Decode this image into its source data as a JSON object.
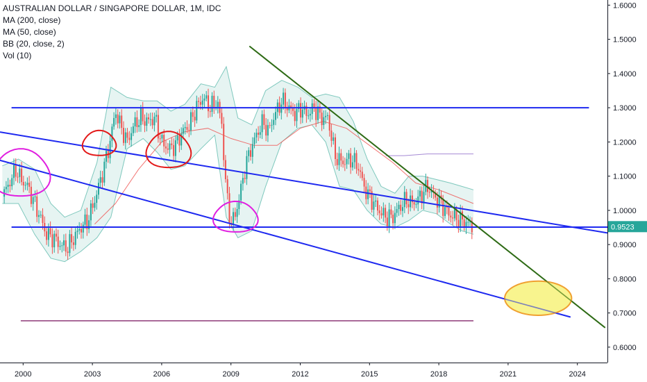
{
  "legend": {
    "title": "AUSTRALIAN DOLLAR / SINGAPORE DOLLAR, 1M, IDC",
    "indicators": [
      "MA (200, close)",
      "MA (50, close)",
      "BB (20, close, 2)",
      "Vol (10)"
    ]
  },
  "chart_data": {
    "type": "candlestick",
    "title": "AUSTRALIAN DOLLAR / SINGAPORE DOLLAR, 1M, IDC",
    "x_ticks": [
      "2000",
      "2003",
      "2006",
      "2009",
      "2012",
      "2015",
      "2018",
      "2021",
      "2024"
    ],
    "y_ticks": [
      "0.6000",
      "0.7000",
      "0.8000",
      "0.9000",
      "1.0000",
      "1.1000",
      "1.2000",
      "1.3000",
      "1.4000",
      "1.5000",
      "1.6000"
    ],
    "xlim": [
      1999.0,
      2025.3
    ],
    "ylim": [
      0.555,
      1.615
    ],
    "current_price": "0.9523",
    "colors": {
      "up": "#26a69a",
      "down": "#ef5350",
      "bb_fill": "#e6f4f2",
      "bb_line": "#7ec8bd",
      "ma50": "#ef5350",
      "ma200": "#7e57c2",
      "price_label": "#26a69a",
      "trend_blue": "#1e29f0",
      "trend_green": "#2e6b16",
      "ellipse_fill": "#f7f27a",
      "ellipse_stroke": "#f0a030"
    },
    "price_path": [
      [
        1999.1,
        1.04
      ],
      [
        1999.4,
        1.08
      ],
      [
        1999.7,
        1.12
      ],
      [
        1999.9,
        1.09
      ],
      [
        2000.2,
        1.07
      ],
      [
        2000.5,
        1.02
      ],
      [
        2000.8,
        0.97
      ],
      [
        2001.0,
        0.93
      ],
      [
        2001.3,
        0.92
      ],
      [
        2001.6,
        0.9
      ],
      [
        2001.9,
        0.89
      ],
      [
        2002.2,
        0.92
      ],
      [
        2002.5,
        0.95
      ],
      [
        2002.8,
        0.97
      ],
      [
        2003.1,
        1.03
      ],
      [
        2003.4,
        1.1
      ],
      [
        2003.7,
        1.18
      ],
      [
        2004.0,
        1.29
      ],
      [
        2004.2,
        1.25
      ],
      [
        2004.5,
        1.2
      ],
      [
        2004.8,
        1.25
      ],
      [
        2005.1,
        1.27
      ],
      [
        2005.4,
        1.26
      ],
      [
        2005.7,
        1.27
      ],
      [
        2006.0,
        1.2
      ],
      [
        2006.3,
        1.18
      ],
      [
        2006.6,
        1.19
      ],
      [
        2006.9,
        1.23
      ],
      [
        2007.2,
        1.25
      ],
      [
        2007.5,
        1.3
      ],
      [
        2007.8,
        1.33
      ],
      [
        2008.1,
        1.3
      ],
      [
        2008.4,
        1.32
      ],
      [
        2008.6,
        1.25
      ],
      [
        2008.8,
        1.05
      ],
      [
        2009.0,
        0.96
      ],
      [
        2009.2,
        0.99
      ],
      [
        2009.4,
        1.05
      ],
      [
        2009.6,
        1.12
      ],
      [
        2009.8,
        1.17
      ],
      [
        2010.1,
        1.22
      ],
      [
        2010.4,
        1.26
      ],
      [
        2010.6,
        1.23
      ],
      [
        2010.9,
        1.28
      ],
      [
        2011.2,
        1.32
      ],
      [
        2011.5,
        1.3
      ],
      [
        2011.8,
        1.28
      ],
      [
        2012.0,
        1.3
      ],
      [
        2012.3,
        1.28
      ],
      [
        2012.6,
        1.3
      ],
      [
        2012.9,
        1.27
      ],
      [
        2013.2,
        1.27
      ],
      [
        2013.5,
        1.16
      ],
      [
        2013.8,
        1.14
      ],
      [
        2014.2,
        1.15
      ],
      [
        2014.5,
        1.13
      ],
      [
        2014.8,
        1.06
      ],
      [
        2015.1,
        1.03
      ],
      [
        2015.4,
        1.0
      ],
      [
        2015.7,
        0.98
      ],
      [
        2016.0,
        0.98
      ],
      [
        2016.3,
        1.01
      ],
      [
        2016.6,
        1.03
      ],
      [
        2016.9,
        1.02
      ],
      [
        2017.2,
        1.04
      ],
      [
        2017.5,
        1.07
      ],
      [
        2017.8,
        1.04
      ],
      [
        2018.1,
        1.02
      ],
      [
        2018.4,
        0.99
      ],
      [
        2018.7,
        0.98
      ],
      [
        2019.0,
        0.97
      ],
      [
        2019.3,
        0.96
      ],
      [
        2019.5,
        0.95
      ]
    ],
    "bb_upper": [
      [
        1999.1,
        1.13
      ],
      [
        1999.8,
        1.15
      ],
      [
        2000.5,
        1.12
      ],
      [
        2001.2,
        1.02
      ],
      [
        2001.8,
        0.98
      ],
      [
        2002.5,
        1.0
      ],
      [
        2003.2,
        1.14
      ],
      [
        2003.8,
        1.36
      ],
      [
        2004.5,
        1.33
      ],
      [
        2005.2,
        1.32
      ],
      [
        2005.8,
        1.32
      ],
      [
        2006.4,
        1.29
      ],
      [
        2007.0,
        1.31
      ],
      [
        2007.7,
        1.37
      ],
      [
        2008.3,
        1.36
      ],
      [
        2008.8,
        1.42
      ],
      [
        2009.3,
        1.27
      ],
      [
        2009.9,
        1.25
      ],
      [
        2010.5,
        1.35
      ],
      [
        2011.2,
        1.38
      ],
      [
        2011.9,
        1.36
      ],
      [
        2012.5,
        1.33
      ],
      [
        2013.1,
        1.34
      ],
      [
        2013.7,
        1.33
      ],
      [
        2014.3,
        1.26
      ],
      [
        2014.9,
        1.15
      ],
      [
        2015.5,
        1.07
      ],
      [
        2016.1,
        1.05
      ],
      [
        2016.7,
        1.1
      ],
      [
        2017.3,
        1.1
      ],
      [
        2017.9,
        1.09
      ],
      [
        2018.5,
        1.08
      ],
      [
        2019.0,
        1.07
      ],
      [
        2019.5,
        1.06
      ]
    ],
    "bb_lower": [
      [
        1999.1,
        1.02
      ],
      [
        1999.8,
        1.02
      ],
      [
        2000.5,
        0.93
      ],
      [
        2001.2,
        0.86
      ],
      [
        2001.8,
        0.85
      ],
      [
        2002.5,
        0.88
      ],
      [
        2003.2,
        0.92
      ],
      [
        2003.8,
        0.98
      ],
      [
        2004.5,
        1.18
      ],
      [
        2005.2,
        1.21
      ],
      [
        2005.8,
        1.17
      ],
      [
        2006.4,
        1.12
      ],
      [
        2007.0,
        1.13
      ],
      [
        2007.7,
        1.18
      ],
      [
        2008.3,
        1.22
      ],
      [
        2008.8,
        0.98
      ],
      [
        2009.3,
        0.92
      ],
      [
        2009.9,
        0.94
      ],
      [
        2010.5,
        1.07
      ],
      [
        2011.2,
        1.2
      ],
      [
        2011.9,
        1.24
      ],
      [
        2012.5,
        1.25
      ],
      [
        2013.1,
        1.2
      ],
      [
        2013.7,
        1.07
      ],
      [
        2014.3,
        1.06
      ],
      [
        2014.9,
        1.0
      ],
      [
        2015.5,
        0.96
      ],
      [
        2016.1,
        0.95
      ],
      [
        2016.7,
        0.97
      ],
      [
        2017.3,
        1.0
      ],
      [
        2017.9,
        0.99
      ],
      [
        2018.5,
        0.96
      ],
      [
        2019.0,
        0.94
      ],
      [
        2019.5,
        0.93
      ]
    ],
    "ma50": [
      [
        2003.1,
        0.96
      ],
      [
        2004.0,
        1.02
      ],
      [
        2005.0,
        1.12
      ],
      [
        2006.0,
        1.2
      ],
      [
        2007.0,
        1.23
      ],
      [
        2008.0,
        1.24
      ],
      [
        2009.0,
        1.21
      ],
      [
        2010.0,
        1.19
      ],
      [
        2011.0,
        1.19
      ],
      [
        2012.0,
        1.24
      ],
      [
        2013.0,
        1.26
      ],
      [
        2014.0,
        1.24
      ],
      [
        2015.0,
        1.19
      ],
      [
        2016.0,
        1.14
      ],
      [
        2017.0,
        1.08
      ],
      [
        2018.0,
        1.06
      ],
      [
        2019.5,
        1.02
      ]
    ],
    "ma200": [
      [
        2015.7,
        1.16
      ],
      [
        2016.5,
        1.16
      ],
      [
        2017.5,
        1.165
      ],
      [
        2019.5,
        1.165
      ]
    ],
    "trendlines_blue": [
      [
        [
          1999.5,
          1.3
        ],
        [
          2024.5,
          1.3
        ]
      ],
      [
        [
          1999.5,
          0.951
        ],
        [
          2025.3,
          0.951
        ]
      ],
      [
        [
          1999.0,
          1.229
        ],
        [
          2025.3,
          0.934
        ]
      ],
      [
        [
          1998.8,
          1.15
        ],
        [
          2023.7,
          0.688
        ]
      ]
    ],
    "trendline_green": [
      [
        2009.8,
        1.48
      ],
      [
        2025.2,
        0.657
      ]
    ],
    "purple_line": [
      [
        1999.9,
        0.677
      ],
      [
        2019.5,
        0.677
      ]
    ],
    "ellipse_zone": {
      "x_center": 2022.3,
      "y_center": 0.743,
      "x_radius": 1.45,
      "y_radius": 0.05
    },
    "red_circles": [
      {
        "x": 2003.3,
        "y": 1.195
      },
      {
        "x": 2006.3,
        "y": 1.175
      }
    ],
    "magenta_circles": [
      {
        "x": 1999.9,
        "y": 1.107
      },
      {
        "x": 2009.2,
        "y": 0.979
      }
    ]
  }
}
